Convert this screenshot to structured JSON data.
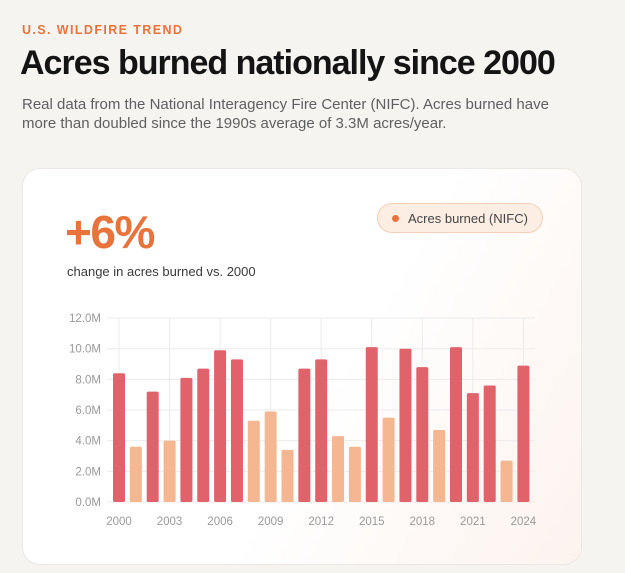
{
  "header": {
    "eyebrow": "U.S. WILDFIRE TREND",
    "title": "Acres burned nationally since 2000",
    "subtitle": "Real data from the National Interagency Fire Center (NIFC). Acres burned have more than doubled since the 1990s average of 3.3M acres/year."
  },
  "card": {
    "stat_value": "+6%",
    "stat_caption": "change in acres burned vs. 2000",
    "legend_label": "Acres burned (NIFC)"
  },
  "colors": {
    "accent": "#e8743b",
    "bar_high": "#e0636b",
    "bar_low": "#f4b792",
    "grid": "#ebebeb"
  },
  "chart_data": {
    "type": "bar",
    "title": "",
    "xlabel": "",
    "ylabel": "",
    "ylim": [
      0,
      12
    ],
    "unit": "M acres",
    "y_ticks": [
      "0.0M",
      "2.0M",
      "4.0M",
      "6.0M",
      "8.0M",
      "10.0M",
      "12.0M"
    ],
    "x_tick_labels": [
      "2000",
      "2003",
      "2006",
      "2009",
      "2012",
      "2015",
      "2018",
      "2021",
      "2024"
    ],
    "grid": true,
    "legend_position": "top-right",
    "categories": [
      "2000",
      "2001",
      "2002",
      "2003",
      "2004",
      "2005",
      "2006",
      "2007",
      "2008",
      "2009",
      "2010",
      "2011",
      "2012",
      "2013",
      "2014",
      "2015",
      "2016",
      "2017",
      "2018",
      "2019",
      "2020",
      "2021",
      "2022",
      "2023",
      "2024"
    ],
    "values": [
      8.4,
      3.6,
      7.2,
      4.0,
      8.1,
      8.7,
      9.9,
      9.3,
      5.3,
      5.9,
      3.4,
      8.7,
      9.3,
      4.3,
      3.6,
      10.1,
      5.5,
      10.0,
      8.8,
      4.7,
      10.1,
      7.1,
      7.6,
      2.7,
      8.9
    ],
    "series": [
      {
        "name": "Acres burned (NIFC)"
      }
    ]
  }
}
